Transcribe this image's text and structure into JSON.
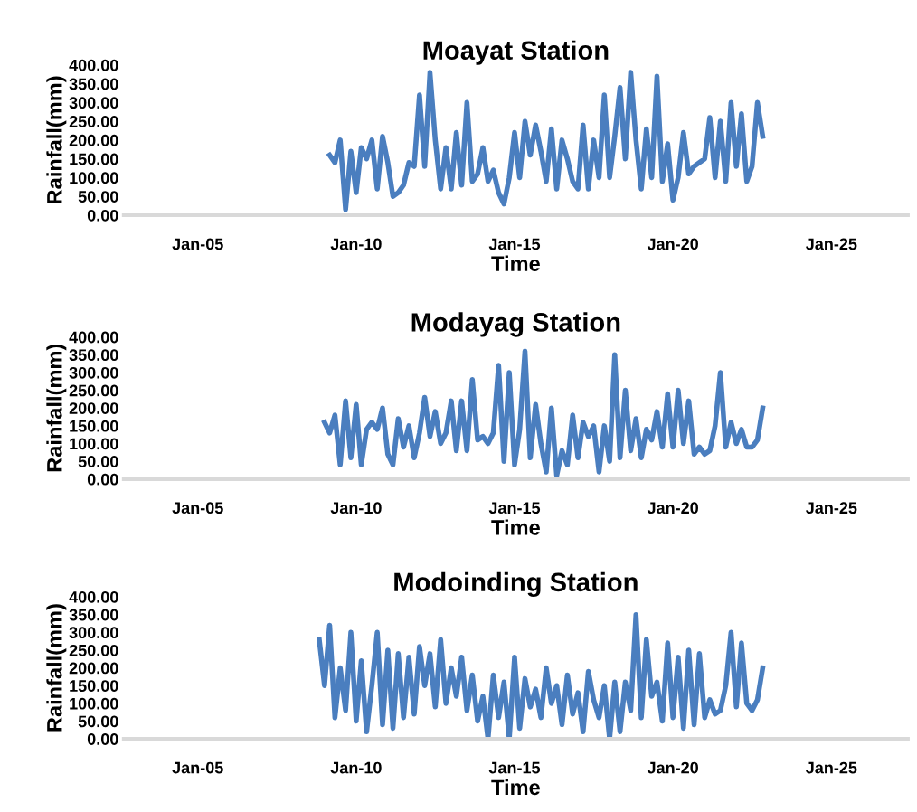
{
  "chart_data": [
    {
      "type": "line",
      "title": "Moayat Station",
      "xlabel": "Time",
      "ylabel": "Rainfall(mm)",
      "xlim": [
        "2002-09",
        "2027-06"
      ],
      "ylim": [
        0,
        400
      ],
      "xticks": [
        {
          "value": "2005-01",
          "label": "Jan-05"
        },
        {
          "value": "2010-01",
          "label": "Jan-10"
        },
        {
          "value": "2015-01",
          "label": "Jan-15"
        },
        {
          "value": "2020-01",
          "label": "Jan-20"
        },
        {
          "value": "2025-01",
          "label": "Jan-25"
        }
      ],
      "yticks": [
        {
          "value": 0,
          "label": "0.00"
        },
        {
          "value": 50,
          "label": "50.00"
        },
        {
          "value": 100,
          "label": "100.00"
        },
        {
          "value": 150,
          "label": "150.00"
        },
        {
          "value": 200,
          "label": "200.00"
        },
        {
          "value": 250,
          "label": "250.00"
        },
        {
          "value": 300,
          "label": "300.00"
        },
        {
          "value": 350,
          "label": "350.00"
        },
        {
          "value": 400,
          "label": "400.00"
        }
      ],
      "grid": false,
      "legend": false,
      "marker": "none",
      "line_style": "solid",
      "series": [
        {
          "color": "#4a7ebf",
          "x": [
            "2009-03",
            "2009-05",
            "2009-07",
            "2009-09",
            "2009-11",
            "2010-01",
            "2010-03",
            "2010-05",
            "2010-07",
            "2010-09",
            "2010-11",
            "2011-01",
            "2011-03",
            "2011-05",
            "2011-07",
            "2011-09",
            "2011-11",
            "2012-01",
            "2012-03",
            "2012-05",
            "2012-07",
            "2012-09",
            "2012-11",
            "2013-01",
            "2013-03",
            "2013-05",
            "2013-07",
            "2013-09",
            "2013-11",
            "2014-01",
            "2014-03",
            "2014-05",
            "2014-07",
            "2014-09",
            "2014-11",
            "2015-01",
            "2015-03",
            "2015-05",
            "2015-07",
            "2015-09",
            "2015-11",
            "2016-01",
            "2016-03",
            "2016-05",
            "2016-07",
            "2016-09",
            "2016-11",
            "2017-01",
            "2017-03",
            "2017-05",
            "2017-07",
            "2017-09",
            "2017-11",
            "2018-01",
            "2018-03",
            "2018-05",
            "2018-07",
            "2018-09",
            "2018-11",
            "2019-01",
            "2019-03",
            "2019-05",
            "2019-07",
            "2019-09",
            "2019-11",
            "2020-01",
            "2020-03",
            "2020-05",
            "2020-07",
            "2020-09",
            "2020-11",
            "2021-01",
            "2021-03",
            "2021-05",
            "2021-07",
            "2021-09",
            "2021-11",
            "2022-01",
            "2022-03",
            "2022-05",
            "2022-07",
            "2022-09",
            "2022-11"
          ],
          "values": [
            160,
            140,
            200,
            15,
            170,
            60,
            180,
            150,
            200,
            70,
            210,
            140,
            50,
            60,
            80,
            140,
            130,
            320,
            130,
            380,
            200,
            70,
            180,
            70,
            220,
            80,
            300,
            90,
            110,
            180,
            90,
            120,
            60,
            30,
            100,
            220,
            100,
            250,
            160,
            240,
            170,
            90,
            230,
            70,
            200,
            150,
            90,
            70,
            240,
            70,
            200,
            100,
            320,
            100,
            210,
            340,
            150,
            380,
            200,
            70,
            230,
            100,
            370,
            90,
            190,
            40,
            100,
            220,
            110,
            130,
            140,
            150,
            260,
            100,
            250,
            90,
            300,
            130,
            270,
            90,
            130,
            300,
            210
          ]
        }
      ]
    },
    {
      "type": "line",
      "title": "Modayag Station",
      "xlabel": "Time",
      "ylabel": "Rainfall(mm)",
      "xlim": [
        "2002-09",
        "2027-06"
      ],
      "ylim": [
        0,
        400
      ],
      "xticks": [
        {
          "value": "2005-01",
          "label": "Jan-05"
        },
        {
          "value": "2010-01",
          "label": "Jan-10"
        },
        {
          "value": "2015-01",
          "label": "Jan-15"
        },
        {
          "value": "2020-01",
          "label": "Jan-20"
        },
        {
          "value": "2025-01",
          "label": "Jan-25"
        }
      ],
      "yticks": [
        {
          "value": 0,
          "label": "0.00"
        },
        {
          "value": 50,
          "label": "50.00"
        },
        {
          "value": 100,
          "label": "100.00"
        },
        {
          "value": 150,
          "label": "150.00"
        },
        {
          "value": 200,
          "label": "200.00"
        },
        {
          "value": 250,
          "label": "250.00"
        },
        {
          "value": 300,
          "label": "300.00"
        },
        {
          "value": 350,
          "label": "350.00"
        },
        {
          "value": 400,
          "label": "400.00"
        }
      ],
      "grid": false,
      "legend": false,
      "marker": "none",
      "line_style": "solid",
      "series": [
        {
          "color": "#4a7ebf",
          "x": [
            "2009-01",
            "2009-03",
            "2009-05",
            "2009-07",
            "2009-09",
            "2009-11",
            "2010-01",
            "2010-03",
            "2010-05",
            "2010-07",
            "2010-09",
            "2010-11",
            "2011-01",
            "2011-03",
            "2011-05",
            "2011-07",
            "2011-09",
            "2011-11",
            "2012-01",
            "2012-03",
            "2012-05",
            "2012-07",
            "2012-09",
            "2012-11",
            "2013-01",
            "2013-03",
            "2013-05",
            "2013-07",
            "2013-09",
            "2013-11",
            "2014-01",
            "2014-03",
            "2014-05",
            "2014-07",
            "2014-09",
            "2014-11",
            "2015-01",
            "2015-03",
            "2015-05",
            "2015-07",
            "2015-09",
            "2015-11",
            "2016-01",
            "2016-03",
            "2016-05",
            "2016-07",
            "2016-09",
            "2016-11",
            "2017-01",
            "2017-03",
            "2017-05",
            "2017-07",
            "2017-09",
            "2017-11",
            "2018-01",
            "2018-03",
            "2018-05",
            "2018-07",
            "2018-09",
            "2018-11",
            "2019-01",
            "2019-03",
            "2019-05",
            "2019-07",
            "2019-09",
            "2019-11",
            "2020-01",
            "2020-03",
            "2020-05",
            "2020-07",
            "2020-09",
            "2020-11",
            "2021-01",
            "2021-03",
            "2021-05",
            "2021-07",
            "2021-09",
            "2021-11",
            "2022-01",
            "2022-03",
            "2022-05",
            "2022-07",
            "2022-09",
            "2022-11"
          ],
          "values": [
            160,
            130,
            180,
            40,
            220,
            60,
            210,
            40,
            140,
            160,
            140,
            200,
            70,
            40,
            170,
            90,
            150,
            60,
            130,
            230,
            120,
            190,
            100,
            130,
            220,
            80,
            220,
            80,
            280,
            110,
            120,
            100,
            130,
            320,
            50,
            300,
            40,
            140,
            360,
            60,
            210,
            100,
            20,
            200,
            10,
            80,
            40,
            180,
            60,
            160,
            120,
            150,
            20,
            150,
            50,
            350,
            60,
            250,
            80,
            170,
            60,
            140,
            110,
            190,
            90,
            240,
            90,
            250,
            100,
            220,
            70,
            90,
            70,
            80,
            150,
            300,
            90,
            160,
            100,
            140,
            90,
            90,
            110,
            200
          ]
        }
      ]
    },
    {
      "type": "line",
      "title": "Modoinding Station",
      "xlabel": "Time",
      "ylabel": "Rainfall(mm)",
      "xlim": [
        "2002-09",
        "2027-06"
      ],
      "ylim": [
        0,
        400
      ],
      "xticks": [
        {
          "value": "2005-01",
          "label": "Jan-05"
        },
        {
          "value": "2010-01",
          "label": "Jan-10"
        },
        {
          "value": "2015-01",
          "label": "Jan-15"
        },
        {
          "value": "2020-01",
          "label": "Jan-20"
        },
        {
          "value": "2025-01",
          "label": "Jan-25"
        }
      ],
      "yticks": [
        {
          "value": 0,
          "label": "0.00"
        },
        {
          "value": 50,
          "label": "50.00"
        },
        {
          "value": 100,
          "label": "100.00"
        },
        {
          "value": 150,
          "label": "150.00"
        },
        {
          "value": 200,
          "label": "200.00"
        },
        {
          "value": 250,
          "label": "250.00"
        },
        {
          "value": 300,
          "label": "300.00"
        },
        {
          "value": 350,
          "label": "350.00"
        },
        {
          "value": 400,
          "label": "400.00"
        }
      ],
      "grid": false,
      "legend": false,
      "marker": "none",
      "line_style": "solid",
      "series": [
        {
          "color": "#4a7ebf",
          "x": [
            "2008-11",
            "2009-01",
            "2009-03",
            "2009-05",
            "2009-07",
            "2009-09",
            "2009-11",
            "2010-01",
            "2010-03",
            "2010-05",
            "2010-07",
            "2010-09",
            "2010-11",
            "2011-01",
            "2011-03",
            "2011-05",
            "2011-07",
            "2011-09",
            "2011-11",
            "2012-01",
            "2012-03",
            "2012-05",
            "2012-07",
            "2012-09",
            "2012-11",
            "2013-01",
            "2013-03",
            "2013-05",
            "2013-07",
            "2013-09",
            "2013-11",
            "2014-01",
            "2014-03",
            "2014-05",
            "2014-07",
            "2014-09",
            "2014-11",
            "2015-01",
            "2015-03",
            "2015-05",
            "2015-07",
            "2015-09",
            "2015-11",
            "2016-01",
            "2016-03",
            "2016-05",
            "2016-07",
            "2016-09",
            "2016-11",
            "2017-01",
            "2017-03",
            "2017-05",
            "2017-07",
            "2017-09",
            "2017-11",
            "2018-01",
            "2018-03",
            "2018-05",
            "2018-07",
            "2018-09",
            "2018-11",
            "2019-01",
            "2019-03",
            "2019-05",
            "2019-07",
            "2019-09",
            "2019-11",
            "2020-01",
            "2020-03",
            "2020-05",
            "2020-07",
            "2020-09",
            "2020-11",
            "2021-01",
            "2021-03",
            "2021-05",
            "2021-07",
            "2021-09",
            "2021-11",
            "2022-01",
            "2022-03",
            "2022-05",
            "2022-07",
            "2022-09",
            "2022-11"
          ],
          "values": [
            280,
            150,
            320,
            60,
            200,
            80,
            300,
            50,
            220,
            20,
            150,
            300,
            40,
            250,
            30,
            240,
            60,
            230,
            70,
            260,
            150,
            240,
            90,
            280,
            100,
            200,
            120,
            230,
            80,
            180,
            50,
            120,
            0,
            180,
            60,
            160,
            0,
            230,
            30,
            170,
            90,
            140,
            60,
            200,
            100,
            150,
            40,
            180,
            70,
            130,
            20,
            190,
            110,
            60,
            150,
            0,
            160,
            20,
            160,
            80,
            350,
            60,
            280,
            120,
            160,
            50,
            270,
            60,
            230,
            30,
            250,
            40,
            240,
            60,
            110,
            70,
            80,
            150,
            300,
            90,
            270,
            100,
            80,
            110,
            200
          ]
        }
      ]
    }
  ]
}
